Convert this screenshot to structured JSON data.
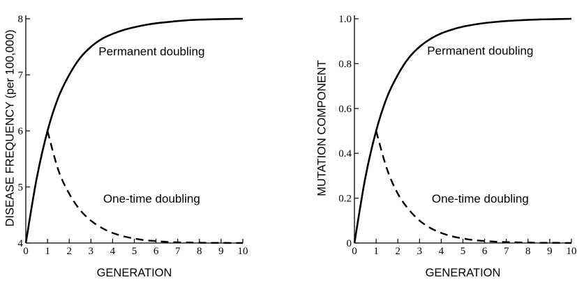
{
  "chart_data": [
    {
      "type": "line",
      "xlabel": "GENERATION",
      "ylabel": "DISEASE FREQUENCY (per 100,000)",
      "xlim": [
        0,
        10
      ],
      "ylim": [
        4,
        8
      ],
      "xticks": [
        0,
        1,
        2,
        3,
        4,
        5,
        6,
        7,
        8,
        9,
        10
      ],
      "yticks": [
        4,
        5,
        6,
        7,
        8
      ],
      "xtick_labels": [
        "0",
        "1",
        "2",
        "3",
        "4",
        "5",
        "6",
        "7",
        "8",
        "9",
        "10"
      ],
      "ytick_labels": [
        "4",
        "5",
        "6",
        "7",
        "8"
      ],
      "grid": false,
      "series": [
        {
          "name": "Permanent doubling",
          "style": "solid",
          "x": [
            0,
            0.5,
            1,
            1.5,
            2,
            2.5,
            3,
            3.5,
            4,
            4.5,
            5,
            5.5,
            6,
            6.5,
            7,
            7.5,
            8,
            8.5,
            9,
            9.5,
            10
          ],
          "y": [
            4.0,
            5.15,
            6.0,
            6.6,
            7.0,
            7.3,
            7.5,
            7.64,
            7.73,
            7.8,
            7.85,
            7.89,
            7.92,
            7.94,
            7.96,
            7.975,
            7.985,
            7.99,
            7.995,
            7.998,
            8.0
          ]
        },
        {
          "name": "One-time doubling",
          "style": "dashed",
          "x": [
            1,
            1.5,
            2,
            2.5,
            3,
            3.5,
            4,
            4.5,
            5,
            5.5,
            6,
            6.5,
            7,
            7.5,
            8,
            8.5,
            9,
            9.5,
            10
          ],
          "y": [
            6.0,
            5.3,
            4.88,
            4.59,
            4.4,
            4.27,
            4.18,
            4.12,
            4.08,
            4.05,
            4.035,
            4.02,
            4.013,
            4.008,
            4.005,
            4.003,
            4.002,
            4.001,
            4.0
          ]
        }
      ],
      "annotations": [
        {
          "text": "Permanent doubling",
          "x": 5.8,
          "y": 7.35
        },
        {
          "text": "One-time doubling",
          "x": 5.8,
          "y": 4.72
        }
      ]
    },
    {
      "type": "line",
      "xlabel": "GENERATION",
      "ylabel": "MUTATION COMPONENT",
      "xlim": [
        0,
        10
      ],
      "ylim": [
        0,
        1.0
      ],
      "xticks": [
        0,
        1,
        2,
        3,
        4,
        5,
        6,
        7,
        8,
        9,
        10
      ],
      "yticks": [
        0,
        0.2,
        0.4,
        0.6,
        0.8,
        1.0
      ],
      "xtick_labels": [
        "0",
        "1",
        "2",
        "3",
        "4",
        "5",
        "6",
        "7",
        "8",
        "9",
        "10"
      ],
      "ytick_labels": [
        "0",
        "0.2",
        "0.4",
        "0.6",
        "0.8",
        "1.0"
      ],
      "grid": false,
      "series": [
        {
          "name": "Permanent doubling",
          "style": "solid",
          "x": [
            0,
            0.5,
            1,
            1.5,
            2,
            2.5,
            3,
            3.5,
            4,
            4.5,
            5,
            5.5,
            6,
            6.5,
            7,
            7.5,
            8,
            8.5,
            9,
            9.5,
            10
          ],
          "y": [
            0.0,
            0.29,
            0.5,
            0.65,
            0.75,
            0.825,
            0.875,
            0.91,
            0.935,
            0.952,
            0.965,
            0.974,
            0.981,
            0.986,
            0.99,
            0.993,
            0.995,
            0.997,
            0.998,
            0.999,
            1.0
          ]
        },
        {
          "name": "One-time doubling",
          "style": "dashed",
          "x": [
            1,
            1.5,
            2,
            2.5,
            3,
            3.5,
            4,
            4.5,
            5,
            5.5,
            6,
            6.5,
            7,
            7.5,
            8,
            8.5,
            9,
            9.5,
            10
          ],
          "y": [
            0.5,
            0.33,
            0.22,
            0.15,
            0.1,
            0.067,
            0.045,
            0.03,
            0.02,
            0.013,
            0.009,
            0.006,
            0.004,
            0.003,
            0.002,
            0.001,
            0.001,
            0.0005,
            0.0
          ]
        }
      ],
      "annotations": [
        {
          "text": "Permanent doubling",
          "x": 5.8,
          "y": 0.84
        },
        {
          "text": "One-time doubling",
          "x": 5.8,
          "y": 0.18
        }
      ]
    }
  ]
}
